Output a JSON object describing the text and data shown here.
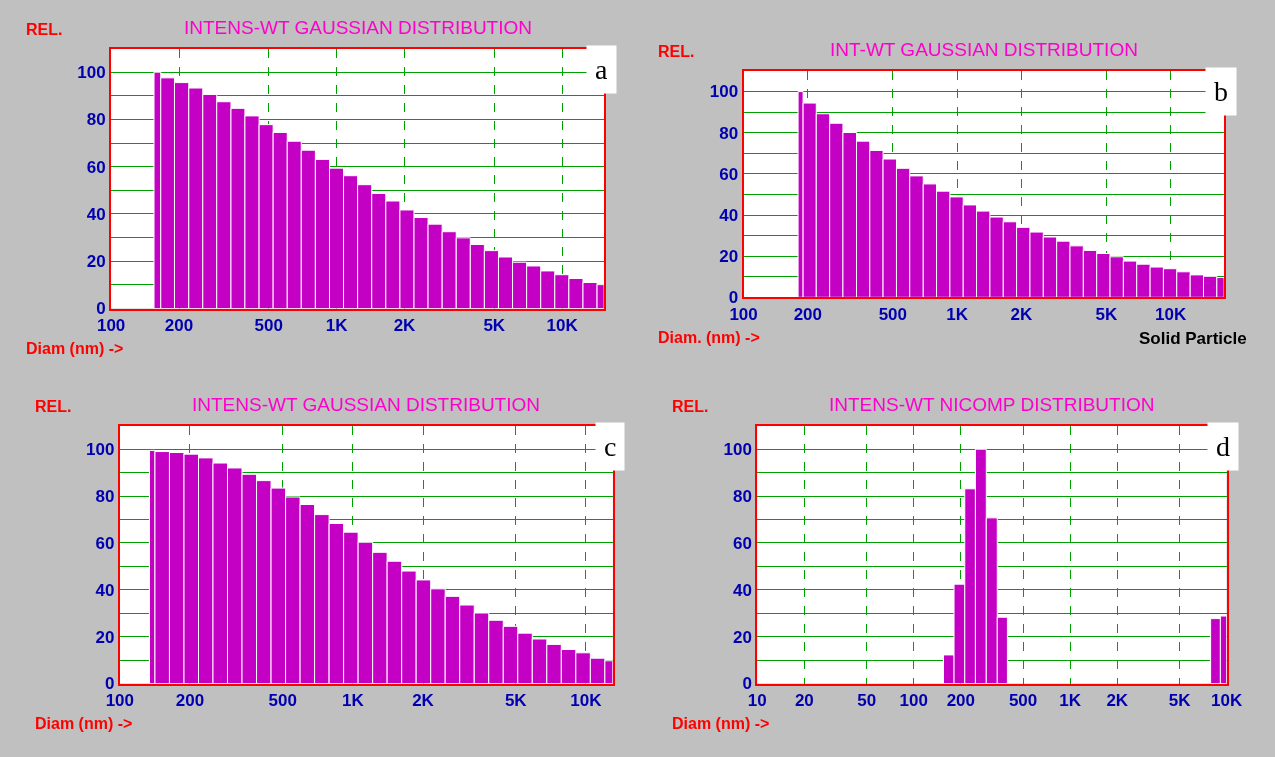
{
  "chart_data": [
    {
      "type": "histogram",
      "title": "INTENS-WT GAUSSIAN DISTRIBUTION",
      "ylabel": "REL.",
      "xlabel": "Diam (nm) ->",
      "color": "#c400c4",
      "log": "x",
      "grid": true,
      "bins": [
        155,
        166,
        191,
        221,
        255,
        294,
        340,
        392,
        453,
        523,
        604,
        697,
        805,
        930,
        1073,
        1239,
        1431,
        1652,
        1908,
        2203,
        2543,
        2937,
        3391,
        3915,
        4520,
        5219,
        6026,
        6958,
        8033,
        9275,
        10710,
        12370,
        14280,
        15350
      ],
      "values": [
        100,
        97.6,
        95.6,
        93.3,
        90.6,
        87.5,
        84.7,
        81.5,
        77.8,
        74.5,
        70.8,
        67,
        63.1,
        59.4,
        56.2,
        52.4,
        48.7,
        45.5,
        41.7,
        38.5,
        35.7,
        32.5,
        29.9,
        27.1,
        24.5,
        21.8,
        19.6,
        18,
        15.9,
        14.3,
        12.7,
        11,
        10.1
      ],
      "xlim": [
        100,
        15350
      ],
      "xticks": [
        100,
        200,
        500,
        {
          "value": 1000,
          "label": "1K"
        },
        {
          "value": 2000,
          "label": "2K"
        },
        {
          "value": 5000,
          "label": "5K"
        },
        {
          "value": 10000,
          "label": "10K"
        }
      ],
      "ylim": [
        0,
        110
      ],
      "yticks": [
        0,
        {
          "value": 10,
          "label": null
        },
        20,
        {
          "value": 30,
          "label": null
        },
        40,
        {
          "value": 50,
          "label": null
        },
        60,
        {
          "value": 70,
          "label": null
        },
        80,
        {
          "value": 90,
          "label": null
        },
        100
      ],
      "annotations": [
        "a"
      ]
    },
    {
      "type": "histogram",
      "title": "INT-WT GAUSSIAN DISTRIBUTION",
      "ylabel": "REL.",
      "xlabel": "Diam. (nm) ->",
      "color": "#c400c4",
      "log": "x",
      "grid": true,
      "bins": [
        180,
        190,
        219,
        253,
        292,
        338,
        390,
        450,
        520,
        600,
        694,
        801,
        925,
        1068,
        1233,
        1424,
        1645,
        1899,
        2193,
        2533,
        2925,
        3377,
        3900,
        4504,
        5201,
        6006,
        6936,
        8010,
        9250,
        10680,
        12340,
        14250,
        16450,
        17800
      ],
      "values": [
        100,
        94.4,
        89.2,
        84.6,
        80.1,
        75.9,
        71.4,
        67.2,
        62.7,
        59,
        55.1,
        51.6,
        48.8,
        44.9,
        41.9,
        39,
        36.7,
        34,
        31.7,
        29.3,
        27.3,
        25,
        22.8,
        21.3,
        19.7,
        17.6,
        16.1,
        14.7,
        13.9,
        12.4,
        10.9,
        10.2,
        9.6
      ],
      "xlim": [
        100,
        17800
      ],
      "xticks": [
        100,
        200,
        500,
        {
          "value": 1000,
          "label": "1K"
        },
        {
          "value": 2000,
          "label": "2K"
        },
        {
          "value": 5000,
          "label": "5K"
        },
        {
          "value": 10000,
          "label": "10K"
        }
      ],
      "ylim": [
        0,
        110
      ],
      "yticks": [
        0,
        {
          "value": 10,
          "label": null
        },
        20,
        {
          "value": 30,
          "label": null
        },
        40,
        {
          "value": 50,
          "label": null
        },
        60,
        {
          "value": 70,
          "label": null
        },
        80,
        {
          "value": 90,
          "label": null
        },
        100
      ],
      "annotations": [
        "b",
        "Solid Particle"
      ]
    },
    {
      "type": "histogram",
      "title": "INTENS-WT GAUSSIAN DISTRIBUTION",
      "ylabel": "REL.",
      "xlabel": "Diam (nm) ->",
      "color": "#c400c4",
      "log": "x",
      "grid": true,
      "bins": [
        134,
        141.5,
        163.3,
        188.5,
        217.6,
        251.1,
        289.8,
        334.5,
        386.1,
        445.6,
        514.3,
        593.6,
        685.1,
        790.8,
        912.7,
        1053,
        1216,
        1403,
        1620,
        1869,
        2158,
        2490,
        2874,
        3318,
        3829,
        4420,
        5101,
        5888,
        6796,
        7843,
        9053,
        10450,
        12060,
        13050
      ],
      "values": [
        99.5,
        99,
        98.6,
        97.9,
        96.3,
        94.1,
        92,
        89.3,
        86.6,
        83.4,
        79.6,
        76.4,
        72.1,
        68.3,
        64.6,
        60.3,
        56,
        52.2,
        48,
        44.2,
        40.4,
        37.2,
        33.5,
        30.1,
        27,
        24.4,
        21.5,
        19,
        16.7,
        14.5,
        13.1,
        10.8,
        9.7
      ],
      "xlim": [
        100,
        13050
      ],
      "xticks": [
        100,
        200,
        500,
        {
          "value": 1000,
          "label": "1K"
        },
        {
          "value": 2000,
          "label": "2K"
        },
        {
          "value": 5000,
          "label": "5K"
        },
        {
          "value": 10000,
          "label": "10K"
        }
      ],
      "ylim": [
        0,
        110
      ],
      "yticks": [
        0,
        {
          "value": 10,
          "label": null
        },
        20,
        {
          "value": 30,
          "label": null
        },
        40,
        {
          "value": 50,
          "label": null
        },
        60,
        {
          "value": 70,
          "label": null
        },
        80,
        {
          "value": 90,
          "label": null
        },
        100
      ],
      "annotations": [
        "c"
      ]
    },
    {
      "type": "histogram",
      "title": "INTENS-WT NICOMP DISTRIBUTION",
      "ylabel": "REL.",
      "xlabel": "Diam (nm) ->",
      "color": "#c400c4",
      "log": "x",
      "grid": true,
      "bins": [
        155,
        181,
        212,
        248,
        291,
        342,
        397,
        7900,
        9120,
        10000
      ],
      "values": [
        12.2,
        42.4,
        83.1,
        100,
        70.7,
        28.3,
        null,
        27.7,
        28.8
      ],
      "xlim": [
        10,
        10000
      ],
      "xticks": [
        10,
        20,
        50,
        100,
        200,
        500,
        {
          "value": 1000,
          "label": "1K"
        },
        {
          "value": 2000,
          "label": "2K"
        },
        {
          "value": 5000,
          "label": "5K"
        },
        {
          "value": 10000,
          "label": "10K"
        }
      ],
      "ylim": [
        0,
        110
      ],
      "yticks": [
        0,
        {
          "value": 10,
          "label": null
        },
        20,
        {
          "value": 30,
          "label": null
        },
        40,
        {
          "value": 50,
          "label": null
        },
        60,
        {
          "value": 70,
          "label": null
        },
        80,
        {
          "value": 90,
          "label": null
        },
        100
      ],
      "annotations": [
        "d"
      ]
    }
  ]
}
